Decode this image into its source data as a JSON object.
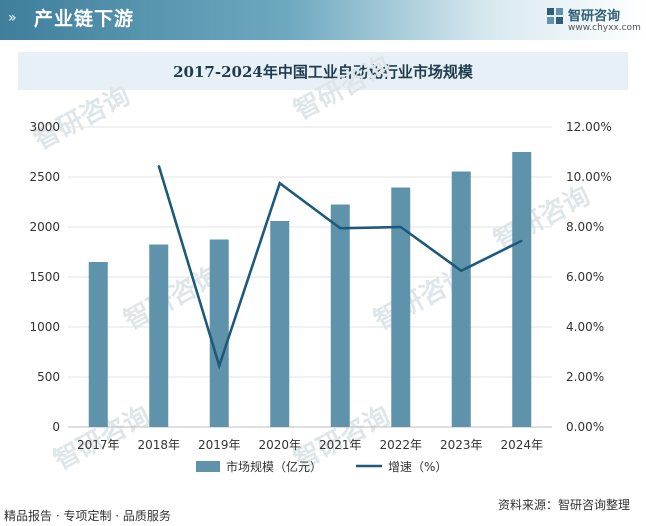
{
  "header": {
    "title": "产业链下游",
    "logo_name": "智研咨询",
    "logo_url": "www.chyxx.com"
  },
  "watermark": "智研咨询",
  "chart_data": {
    "type": "bar",
    "title": "2017-2024年中国工业自动化行业市场规模",
    "categories": [
      "2017年",
      "2018年",
      "2019年",
      "2020年",
      "2021年",
      "2022年",
      "2023年",
      "2024年"
    ],
    "series": [
      {
        "name": "市场规模（亿元）",
        "type": "bar",
        "axis": "left",
        "color": "#5f93ab",
        "values": [
          1650,
          1825,
          1875,
          2060,
          2225,
          2395,
          2555,
          2750
        ]
      },
      {
        "name": "增速（%）",
        "type": "line",
        "axis": "right",
        "color": "#1d5a7a",
        "values": [
          null,
          10.45,
          2.45,
          9.75,
          7.95,
          8.0,
          6.25,
          7.45
        ]
      }
    ],
    "yleft": {
      "min": 0,
      "max": 3000,
      "ticks": [
        0,
        500,
        1000,
        1500,
        2000,
        2500,
        3000
      ],
      "tick_labels": [
        "0",
        "500",
        "1000",
        "1500",
        "2000",
        "2500",
        "3000"
      ]
    },
    "yright": {
      "min": 0,
      "max": 12,
      "ticks": [
        0,
        2,
        4,
        6,
        8,
        10,
        12
      ],
      "tick_labels": [
        "0.00%",
        "2.00%",
        "4.00%",
        "6.00%",
        "8.00%",
        "10.00%",
        "12.00%"
      ]
    },
    "grid": true,
    "legend_position": "bottom"
  },
  "footer": {
    "left": "精品报告 · 专项定制 · 品质服务",
    "source": "资料来源：智研咨询整理"
  }
}
